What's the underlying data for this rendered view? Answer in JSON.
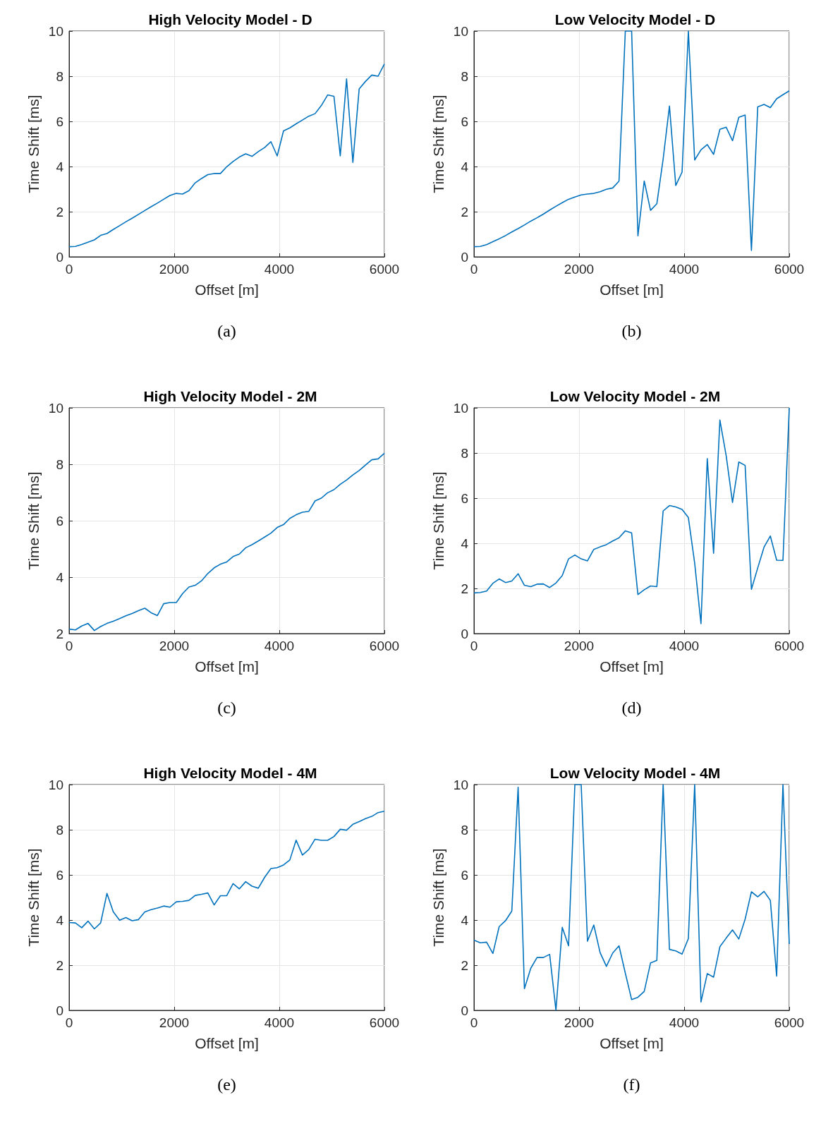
{
  "chart_data": [
    {
      "type": "line",
      "title": "High Velocity Model - D",
      "xlabel": "Offset [m]",
      "ylabel": "Time Shift [ms]",
      "annotations": [
        "(a)"
      ],
      "grid": true,
      "marker": "none",
      "xlim": [
        0,
        6000
      ],
      "xticks": [
        0,
        2000,
        4000,
        6000
      ],
      "ylim": [
        0,
        10
      ],
      "yticks": [
        0,
        2,
        4,
        6,
        8,
        10
      ],
      "x": [
        0,
        120,
        240,
        360,
        480,
        600,
        720,
        840,
        960,
        1080,
        1200,
        1320,
        1440,
        1560,
        1680,
        1800,
        1920,
        2040,
        2160,
        2280,
        2400,
        2520,
        2640,
        2760,
        2880,
        3000,
        3120,
        3240,
        3360,
        3480,
        3600,
        3720,
        3840,
        3960,
        4080,
        4200,
        4320,
        4440,
        4560,
        4680,
        4800,
        4920,
        5040,
        5160,
        5280,
        5400,
        5520,
        5640,
        5760,
        5880,
        6000
      ],
      "series": [
        {
          "color": "#0072bd",
          "values": [
            0.45,
            0.46,
            0.55,
            0.65,
            0.75,
            0.95,
            1.03,
            1.21,
            1.38,
            1.55,
            1.71,
            1.88,
            2.05,
            2.22,
            2.38,
            2.55,
            2.72,
            2.81,
            2.78,
            2.93,
            3.28,
            3.47,
            3.64,
            3.69,
            3.69,
            3.99,
            4.22,
            4.42,
            4.56,
            4.45,
            4.66,
            4.84,
            5.1,
            4.47,
            5.58,
            5.71,
            5.89,
            6.06,
            6.23,
            6.34,
            6.7,
            7.17,
            7.11,
            4.47,
            7.88,
            4.18,
            7.44,
            7.77,
            8.05,
            8.0,
            8.54
          ]
        }
      ]
    },
    {
      "type": "line",
      "title": "Low Velocity Model - D",
      "xlabel": "Offset [m]",
      "ylabel": "Time Shift [ms]",
      "annotations": [
        "(b)"
      ],
      "grid": true,
      "marker": "none",
      "xlim": [
        0,
        6000
      ],
      "xticks": [
        0,
        2000,
        4000,
        6000
      ],
      "ylim": [
        0,
        10
      ],
      "yticks": [
        0,
        2,
        4,
        6,
        8,
        10
      ],
      "x": [
        0,
        120,
        240,
        360,
        480,
        600,
        720,
        840,
        960,
        1080,
        1200,
        1320,
        1440,
        1560,
        1680,
        1800,
        1920,
        2040,
        2160,
        2280,
        2400,
        2520,
        2640,
        2760,
        2880,
        3000,
        3120,
        3240,
        3360,
        3480,
        3600,
        3720,
        3840,
        3960,
        4080,
        4200,
        4320,
        4440,
        4560,
        4680,
        4800,
        4920,
        5040,
        5160,
        5280,
        5400,
        5520,
        5640,
        5760,
        5880,
        6000
      ],
      "series": [
        {
          "color": "#0072bd",
          "values": [
            0.45,
            0.46,
            0.54,
            0.67,
            0.8,
            0.94,
            1.1,
            1.25,
            1.41,
            1.58,
            1.73,
            1.89,
            2.07,
            2.24,
            2.4,
            2.55,
            2.65,
            2.74,
            2.78,
            2.81,
            2.88,
            2.99,
            3.05,
            3.35,
            10,
            10,
            0.93,
            3.36,
            2.06,
            2.35,
            4.33,
            6.68,
            3.16,
            3.75,
            10,
            4.29,
            4.74,
            4.97,
            4.54,
            5.65,
            5.74,
            5.14,
            6.18,
            6.28,
            0.28,
            6.64,
            6.75,
            6.61,
            7.0,
            7.18,
            7.35
          ]
        }
      ]
    },
    {
      "type": "line",
      "title": "High Velocity Model - 2M",
      "xlabel": "Offset [m]",
      "ylabel": "Time Shift [ms]",
      "annotations": [
        "(c)"
      ],
      "grid": true,
      "marker": "none",
      "xlim": [
        0,
        6000
      ],
      "xticks": [
        0,
        2000,
        4000,
        6000
      ],
      "ylim": [
        2,
        10
      ],
      "yticks": [
        2,
        4,
        6,
        8,
        10
      ],
      "x": [
        0,
        120,
        240,
        360,
        480,
        600,
        720,
        840,
        960,
        1080,
        1200,
        1320,
        1440,
        1560,
        1680,
        1800,
        1920,
        2040,
        2160,
        2280,
        2400,
        2520,
        2640,
        2760,
        2880,
        3000,
        3120,
        3240,
        3360,
        3480,
        3600,
        3720,
        3840,
        3960,
        4080,
        4200,
        4320,
        4440,
        4560,
        4680,
        4800,
        4920,
        5040,
        5160,
        5280,
        5400,
        5520,
        5640,
        5760,
        5880,
        6000
      ],
      "series": [
        {
          "color": "#0072bd",
          "values": [
            2.16,
            2.13,
            2.27,
            2.36,
            2.11,
            2.25,
            2.36,
            2.44,
            2.53,
            2.63,
            2.71,
            2.81,
            2.9,
            2.74,
            2.64,
            3.06,
            3.1,
            3.1,
            3.42,
            3.65,
            3.71,
            3.87,
            4.13,
            4.33,
            4.46,
            4.54,
            4.73,
            4.82,
            5.04,
            5.15,
            5.28,
            5.42,
            5.56,
            5.76,
            5.86,
            6.08,
            6.21,
            6.3,
            6.33,
            6.7,
            6.8,
            6.99,
            7.1,
            7.29,
            7.44,
            7.62,
            7.78,
            7.97,
            8.16,
            8.19,
            8.39
          ]
        }
      ]
    },
    {
      "type": "line",
      "title": "Low Velocity Model - 2M",
      "xlabel": "Offset [m]",
      "ylabel": "Time Shift [ms]",
      "annotations": [
        "(d)"
      ],
      "grid": true,
      "marker": "none",
      "xlim": [
        0,
        6000
      ],
      "xticks": [
        0,
        2000,
        4000,
        6000
      ],
      "ylim": [
        0,
        10
      ],
      "yticks": [
        0,
        2,
        4,
        6,
        8,
        10
      ],
      "x": [
        0,
        120,
        240,
        360,
        480,
        600,
        720,
        840,
        960,
        1080,
        1200,
        1320,
        1440,
        1560,
        1680,
        1800,
        1920,
        2040,
        2160,
        2280,
        2400,
        2520,
        2640,
        2760,
        2880,
        3000,
        3120,
        3240,
        3360,
        3480,
        3600,
        3720,
        3840,
        3960,
        4080,
        4200,
        4320,
        4440,
        4560,
        4680,
        4800,
        4920,
        5040,
        5160,
        5280,
        5400,
        5520,
        5640,
        5760,
        5880,
        6000
      ],
      "series": [
        {
          "color": "#0072bd",
          "values": [
            1.8,
            1.82,
            1.88,
            2.23,
            2.42,
            2.26,
            2.33,
            2.65,
            2.14,
            2.08,
            2.19,
            2.2,
            2.04,
            2.24,
            2.57,
            3.31,
            3.48,
            3.31,
            3.22,
            3.73,
            3.84,
            3.94,
            4.1,
            4.24,
            4.55,
            4.46,
            1.73,
            1.94,
            2.11,
            2.08,
            5.43,
            5.67,
            5.61,
            5.5,
            5.14,
            3.12,
            0.44,
            7.75,
            3.56,
            9.46,
            7.87,
            5.81,
            7.6,
            7.45,
            1.96,
            2.91,
            3.83,
            4.32,
            3.25,
            3.24,
            10
          ]
        }
      ]
    },
    {
      "type": "line",
      "title": "High Velocity Model - 4M",
      "xlabel": "Offset [m]",
      "ylabel": "Time Shift [ms]",
      "annotations": [
        "(e)"
      ],
      "grid": true,
      "marker": "none",
      "xlim": [
        0,
        6000
      ],
      "xticks": [
        0,
        2000,
        4000,
        6000
      ],
      "ylim": [
        0,
        10
      ],
      "yticks": [
        0,
        2,
        4,
        6,
        8,
        10
      ],
      "x": [
        0,
        120,
        240,
        360,
        480,
        600,
        720,
        840,
        960,
        1080,
        1200,
        1320,
        1440,
        1560,
        1680,
        1800,
        1920,
        2040,
        2160,
        2280,
        2400,
        2520,
        2640,
        2760,
        2880,
        3000,
        3120,
        3240,
        3360,
        3480,
        3600,
        3720,
        3840,
        3960,
        4080,
        4200,
        4320,
        4440,
        4560,
        4680,
        4800,
        4920,
        5040,
        5160,
        5280,
        5400,
        5520,
        5640,
        5760,
        5880,
        6000
      ],
      "series": [
        {
          "color": "#0072bd",
          "values": [
            3.89,
            3.87,
            3.66,
            3.95,
            3.61,
            3.87,
            5.18,
            4.37,
            3.99,
            4.11,
            3.97,
            4.02,
            4.36,
            4.46,
            4.53,
            4.62,
            4.57,
            4.81,
            4.83,
            4.87,
            5.09,
            5.14,
            5.2,
            4.67,
            5.08,
            5.08,
            5.61,
            5.38,
            5.7,
            5.5,
            5.41,
            5.89,
            6.28,
            6.32,
            6.44,
            6.66,
            7.54,
            6.88,
            7.12,
            7.58,
            7.53,
            7.53,
            7.7,
            8.02,
            7.98,
            8.24,
            8.36,
            8.49,
            8.59,
            8.76,
            8.82
          ]
        }
      ]
    },
    {
      "type": "line",
      "title": "Low Velocity Model - 4M",
      "xlabel": "Offset [m]",
      "ylabel": "Time Shift [ms]",
      "annotations": [
        "(f)"
      ],
      "grid": true,
      "marker": "none",
      "xlim": [
        0,
        6000
      ],
      "xticks": [
        0,
        2000,
        4000,
        6000
      ],
      "ylim": [
        0,
        10
      ],
      "yticks": [
        0,
        2,
        4,
        6,
        8,
        10
      ],
      "x": [
        0,
        120,
        240,
        360,
        480,
        600,
        720,
        840,
        960,
        1080,
        1200,
        1320,
        1440,
        1560,
        1680,
        1800,
        1920,
        2040,
        2160,
        2280,
        2400,
        2520,
        2640,
        2760,
        2880,
        3000,
        3120,
        3240,
        3360,
        3480,
        3600,
        3720,
        3840,
        3960,
        4080,
        4200,
        4320,
        4440,
        4560,
        4680,
        4800,
        4920,
        5040,
        5160,
        5280,
        5400,
        5520,
        5640,
        5760,
        5880,
        6000
      ],
      "series": [
        {
          "color": "#0072bd",
          "values": [
            3.11,
            2.99,
            3.02,
            2.52,
            3.71,
            3.97,
            4.4,
            9.88,
            0.96,
            1.86,
            2.34,
            2.34,
            2.48,
            0,
            3.68,
            2.86,
            10,
            10,
            3.06,
            3.78,
            2.56,
            1.95,
            2.54,
            2.86,
            1.65,
            0.48,
            0.58,
            0.84,
            2.1,
            2.21,
            10,
            2.7,
            2.63,
            2.49,
            3.18,
            10,
            0.37,
            1.63,
            1.47,
            2.82,
            3.2,
            3.56,
            3.16,
            4.04,
            5.25,
            5.03,
            5.27,
            4.87,
            1.52,
            10,
            2.94
          ]
        }
      ]
    }
  ]
}
